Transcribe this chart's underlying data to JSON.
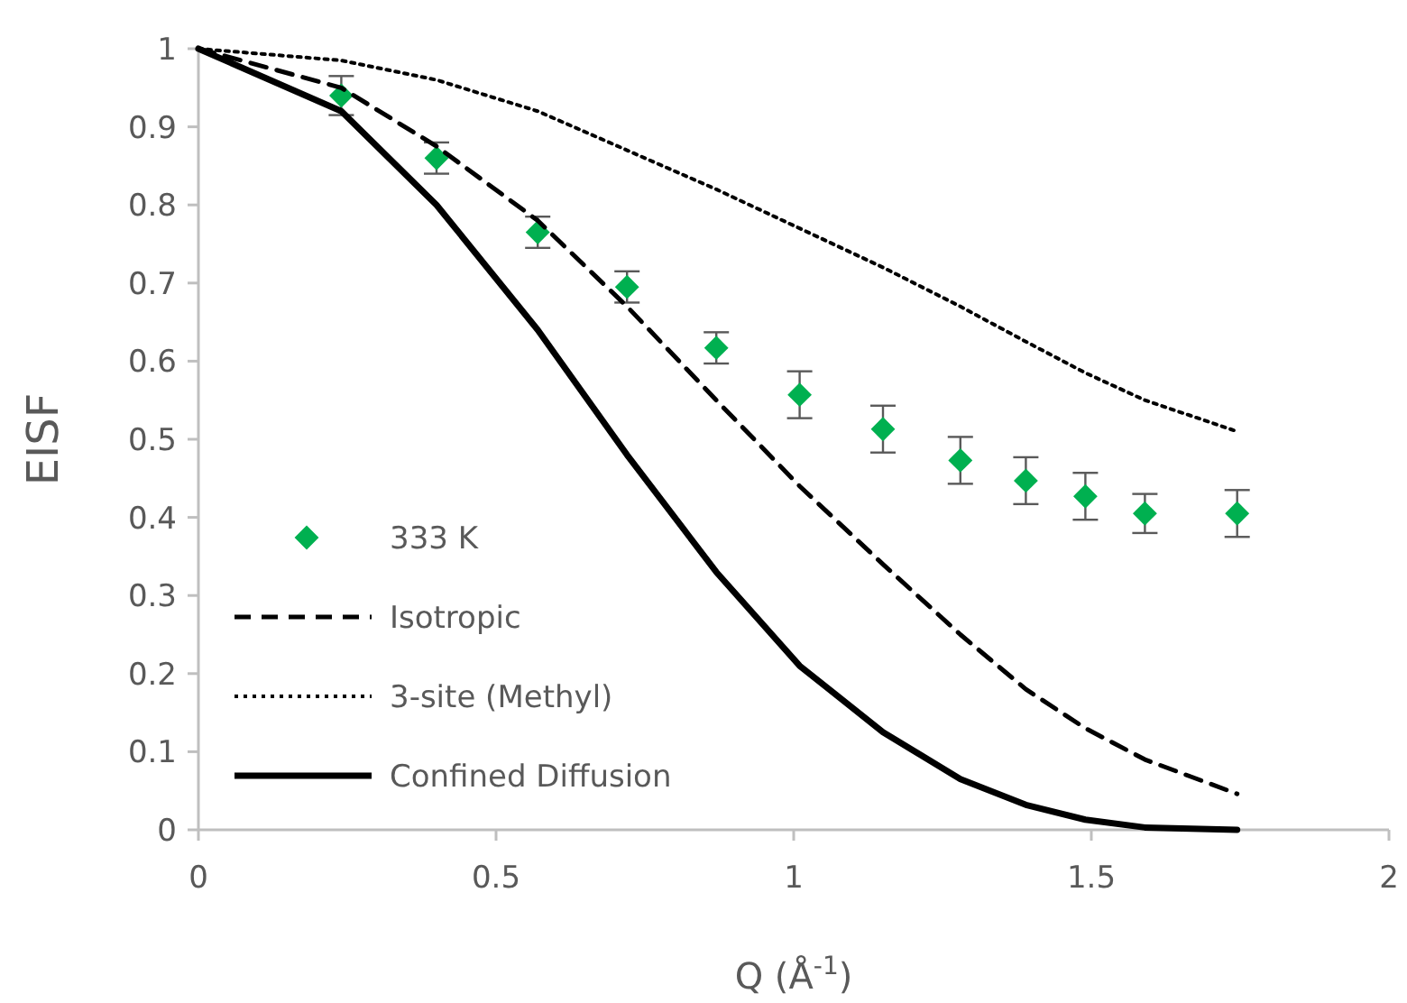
{
  "chart_data": {
    "type": "line",
    "xlabel": "Q (Å$^{-1}$)",
    "ylabel": "EISF",
    "xlim": [
      0,
      2
    ],
    "ylim": [
      0,
      1
    ],
    "xticks": [
      0,
      0.5,
      1,
      1.5,
      2
    ],
    "yticks": [
      0,
      0.1,
      0.2,
      0.3,
      0.4,
      0.5,
      0.6,
      0.7,
      0.8,
      0.9,
      1
    ],
    "grid": false,
    "legend": "bottom left",
    "series": [
      {
        "name": "333 K",
        "type": "scatter",
        "marker": "diamond",
        "color": "#00b050",
        "x": [
          0.24,
          0.4,
          0.57,
          0.72,
          0.87,
          1.01,
          1.15,
          1.28,
          1.39,
          1.49,
          1.59,
          1.745
        ],
        "values": [
          0.94,
          0.86,
          0.765,
          0.695,
          0.617,
          0.557,
          0.513,
          0.473,
          0.447,
          0.427,
          0.405,
          0.405
        ],
        "errors": [
          0.025,
          0.02,
          0.02,
          0.02,
          0.02,
          0.03,
          0.03,
          0.03,
          0.03,
          0.03,
          0.025,
          0.03
        ]
      },
      {
        "name": "Isotropic",
        "line_style": "dashed",
        "marker": "none",
        "color": "#000000",
        "x": [
          0,
          0.24,
          0.4,
          0.57,
          0.72,
          0.87,
          1.01,
          1.15,
          1.28,
          1.39,
          1.49,
          1.59,
          1.745
        ],
        "values": [
          1,
          0.95,
          0.875,
          0.78,
          0.67,
          0.55,
          0.44,
          0.34,
          0.25,
          0.18,
          0.13,
          0.09,
          0.046
        ]
      },
      {
        "name": "3-site (Methyl)",
        "line_style": "dotted",
        "marker": "none",
        "color": "#000000",
        "x": [
          0,
          0.24,
          0.4,
          0.57,
          0.72,
          0.87,
          1.01,
          1.15,
          1.28,
          1.39,
          1.49,
          1.59,
          1.745
        ],
        "values": [
          1,
          0.985,
          0.96,
          0.92,
          0.87,
          0.82,
          0.77,
          0.72,
          0.67,
          0.625,
          0.585,
          0.55,
          0.51
        ]
      },
      {
        "name": "Confined Diffusion",
        "line_style": "solid",
        "marker": "none",
        "color": "#000000",
        "x": [
          0,
          0.24,
          0.4,
          0.57,
          0.72,
          0.87,
          1.01,
          1.15,
          1.28,
          1.39,
          1.49,
          1.59,
          1.745
        ],
        "values": [
          1,
          0.92,
          0.8,
          0.64,
          0.48,
          0.33,
          0.21,
          0.125,
          0.065,
          0.032,
          0.013,
          0.003,
          0
        ]
      }
    ]
  }
}
